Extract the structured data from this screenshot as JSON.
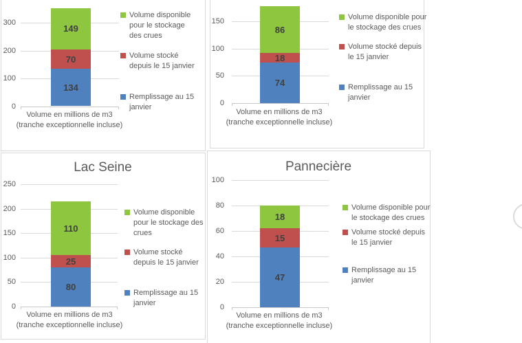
{
  "page": {
    "background": "#FFFFFF"
  },
  "colors": {
    "panel_border": "#D9D9D9",
    "gridline": "#D9D9D9",
    "axis_line": "#C8C8C8",
    "axis_text": "#595959",
    "value_text": "#404040",
    "title_text": "#595959",
    "series_blue": "#4E81BD",
    "series_red": "#C0504D",
    "series_green": "#8EC63F",
    "widget_ring": "#DBDBDB"
  },
  "chart_data": [
    {
      "id": "top_left",
      "type": "bar",
      "stacked": true,
      "title": "",
      "categories": [
        "Volume en millions de m3 (tranche exceptionnelle incluse)"
      ],
      "xlabel": "Volume en millions de m3 (tranche exceptionnelle incluse)",
      "ylabel": "",
      "yticks": [
        0,
        100,
        200,
        300
      ],
      "ylim": [
        0,
        400
      ],
      "grid": true,
      "legend_position": "right",
      "series": [
        {
          "name": "Remplissage au 15 janvier",
          "color": "#4E81BD",
          "values": [
            134
          ]
        },
        {
          "name": "Volume stocké depuis le 15 janvier",
          "color": "#C0504D",
          "values": [
            70
          ]
        },
        {
          "name": "Volume disponible pour le stockage des crues",
          "color": "#8EC63F",
          "values": [
            149
          ]
        }
      ]
    },
    {
      "id": "top_right",
      "type": "bar",
      "stacked": true,
      "title": "",
      "categories": [
        "Volume en millions de m3 (tranche exceptionnelle incluse)"
      ],
      "xlabel": "Volume en millions de m3 (tranche exceptionnelle incluse)",
      "ylabel": "",
      "yticks": [
        0,
        50,
        100,
        150
      ],
      "ylim": [
        0,
        200
      ],
      "grid": true,
      "legend_position": "right",
      "series": [
        {
          "name": "Remplissage au 15 janvier",
          "color": "#4E81BD",
          "values": [
            74
          ]
        },
        {
          "name": "Volume stocké depuis le 15 janvier",
          "color": "#C0504D",
          "values": [
            18
          ]
        },
        {
          "name": "Volume disponible pour le stockage des crues",
          "color": "#8EC63F",
          "values": [
            86
          ]
        }
      ]
    },
    {
      "id": "lac_seine",
      "type": "bar",
      "stacked": true,
      "title": "Lac Seine",
      "categories": [
        "Volume en millions de m3 (tranche exceptionnelle incluse)"
      ],
      "xlabel": "Volume en millions de m3 (tranche exceptionnelle incluse)",
      "ylabel": "",
      "yticks": [
        0,
        50,
        100,
        150,
        200,
        250
      ],
      "ylim": [
        0,
        250
      ],
      "grid": true,
      "legend_position": "right",
      "series": [
        {
          "name": "Remplissage au 15 janvier",
          "color": "#4E81BD",
          "values": [
            80
          ]
        },
        {
          "name": "Volume stocké depuis le 15 janvier",
          "color": "#C0504D",
          "values": [
            25
          ]
        },
        {
          "name": "Volume disponible pour le stockage des crues",
          "color": "#8EC63F",
          "values": [
            110
          ]
        }
      ]
    },
    {
      "id": "panneciere",
      "type": "bar",
      "stacked": true,
      "title": "Pannecière",
      "categories": [
        "Volume en millions de m3 (tranche exceptionnelle incluse)"
      ],
      "xlabel": "Volume en millions de m3 (tranche exceptionnelle incluse)",
      "ylabel": "",
      "yticks": [
        0,
        20,
        40,
        60,
        80,
        100
      ],
      "ylim": [
        0,
        100
      ],
      "grid": true,
      "legend_position": "right",
      "series": [
        {
          "name": "Remplissage au 15 janvier",
          "color": "#4E81BD",
          "values": [
            47
          ]
        },
        {
          "name": "Volume stocké depuis le 15 janvier",
          "color": "#C0504D",
          "values": [
            15
          ]
        },
        {
          "name": "Volume disponible pour le stockage des crues",
          "color": "#8EC63F",
          "values": [
            18
          ]
        }
      ]
    }
  ]
}
